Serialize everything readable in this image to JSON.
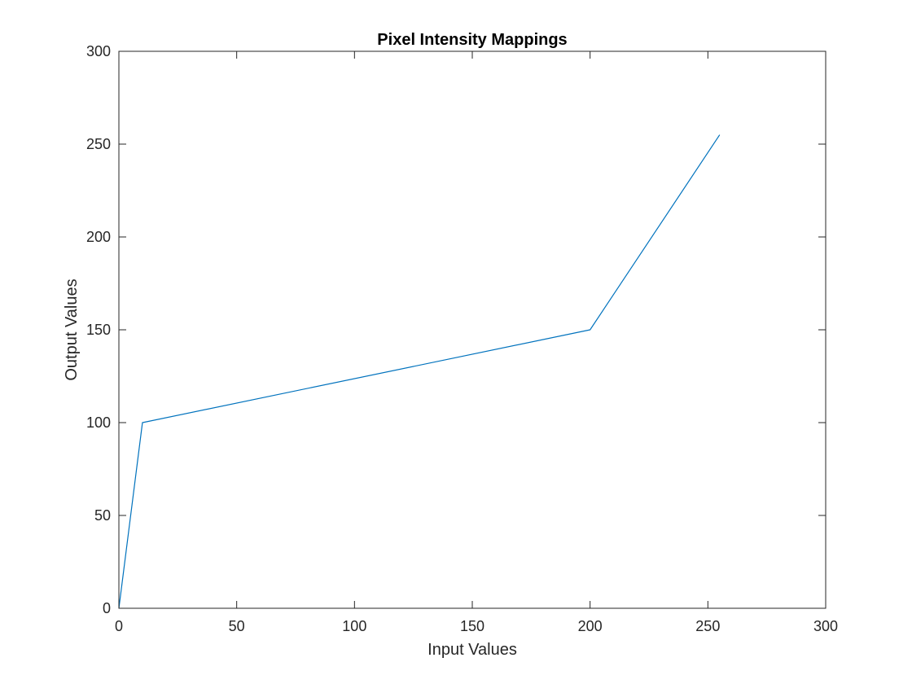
{
  "chart_data": {
    "type": "line",
    "title": "Pixel Intensity Mappings",
    "xlabel": "Input Values",
    "ylabel": "Output Values",
    "xlim": [
      0,
      300
    ],
    "ylim": [
      0,
      300
    ],
    "xticks": [
      0,
      50,
      100,
      150,
      200,
      250,
      300
    ],
    "yticks": [
      0,
      50,
      100,
      150,
      200,
      250,
      300
    ],
    "xtick_labels": [
      "0",
      "50",
      "100",
      "150",
      "200",
      "250",
      "300"
    ],
    "ytick_labels": [
      "0",
      "50",
      "100",
      "150",
      "200",
      "250",
      "300"
    ],
    "grid": false,
    "series": [
      {
        "color": "#0072BD",
        "x": [
          0,
          10,
          200,
          255
        ],
        "y": [
          0,
          100,
          150,
          255
        ]
      }
    ]
  }
}
